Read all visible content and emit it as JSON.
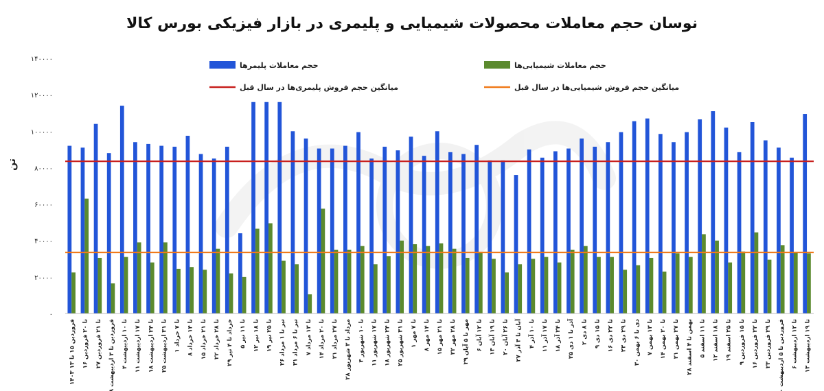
{
  "chart_data": {
    "type": "bar",
    "title": "نوسان حجم معاملات محصولات شیمیایی و پلیمری در بازار فیزیکی بورس کالا",
    "ylabel": "تن",
    "ylim": [
      0,
      140000
    ],
    "yticks": [
      0,
      20000,
      40000,
      60000,
      80000,
      100000,
      120000,
      140000
    ],
    "ytick_labels": [
      "۰",
      "۲۰۰۰۰",
      "۴۰۰۰۰",
      "۶۰۰۰۰",
      "۸۰۰۰۰",
      "۱۰۰۰۰۰",
      "۱۲۰۰۰۰",
      "۱۴۰۰۰۰"
    ],
    "categories": [
      "۱۴۰۳ فروردین ۱۵ تا ۱۳",
      "۱۶ تا ۲۰ فروردین",
      "۲۷ تا ۲۱ فروردین",
      "۲۸ فروردین تا ۳ اردیبهشت",
      "۴ تا ۱۰ اردیبهشت",
      "۱۱ تا ۱۷ اردیبهشت",
      "۱۸ تا ۲۴ اردیبهشت",
      "۲۵ تا ۳۱ اردیبهشت",
      "۱ تا ۷ خرداد",
      "۸ تا ۱۴ خرداد",
      "۱۵ تا ۲۱ خرداد",
      "۲۲ تا ۲۸ خرداد",
      "۲۹ خرداد تا ۴ تیر",
      "۵ تا ۱۱ تیر",
      "۱۲ تا ۱۸ تیر",
      "۱۹ تا ۲۵ تیر",
      "۲۶ تیر تا ۱ مرداد",
      "۳۱ تیر تا ۶ مرداد",
      "۷ تا ۱۳ مرداد",
      "۱۴ تا ۲۰ مرداد",
      "۲۱ تا ۲۷ مرداد",
      "۲۸ مرداد تا ۳ شهریور",
      "۴ تا ۱۰ شهریور",
      "۱۱ تا ۱۷ شهریور",
      "۱۸ تا ۲۴ شهریور",
      "۲۵ تا ۳۱ شهریور",
      "۱ تا ۷ مهر",
      "۸ تا ۱۴ مهر",
      "۱۵ تا ۲۱ مهر",
      "۲۲ تا ۲۸ مهر",
      "۲۹ مهر تا ۵ آبان",
      "۶ تا ۱۲ آبان",
      "۱۳ تا ۱۹ آبان",
      "۲۰ تا ۲۶ آبان",
      "۲۷ آبان تا ۳ آذر",
      "۴ تا ۱۰ آذر",
      "۱۱ تا ۱۷ آذر",
      "۱۸ تا ۲۴ آذر",
      "۲۵ آذر تا ۱ دی",
      "۲ تا ۸ دی",
      "۹ تا ۱۵ دی",
      "۱۶ تا ۲۲ دی",
      "۲۳ تا ۲۹ دی",
      "۳۰ دی تا ۶ بهمن",
      "۷ تا ۱۳ بهمن",
      "۱۴ تا ۲۰ بهمن",
      "۲۱ تا ۲۷ بهمن",
      "۲۸ بهمن تا ۴ اسفند",
      "۵ تا ۱۱ اسفند",
      "۱۲ تا ۱۸ اسفند",
      "۱۹ تا ۲۵ اسفند",
      "۹ تا ۱۵ فروردین",
      "۱۶ تا ۲۲ فروردین",
      "۲۳ تا ۲۹ فروردین",
      "۳۰ فروردین تا ۵ اردیبهشت",
      "۶ تا ۱۲ اردیبهشت",
      "۱۳ تا ۱۹ اردیبهشت"
    ],
    "series": [
      {
        "name": "حجم معاملات پلیمرها",
        "color": "#2255d8",
        "values": [
          92000,
          91000,
          104000,
          88000,
          114000,
          94000,
          93000,
          92000,
          91500,
          97500,
          87500,
          85000,
          91500,
          44000,
          116000,
          116000,
          116000,
          100000,
          96000,
          90500,
          90500,
          92000,
          99500,
          85000,
          91500,
          89500,
          97000,
          86500,
          100000,
          88500,
          87500,
          92500,
          84000,
          84000,
          76000,
          90000,
          85500,
          89000,
          90500,
          96000,
          91500,
          94000,
          99500,
          105500,
          107000,
          98500,
          94000,
          99500,
          106500,
          111000,
          102000,
          88500,
          105000,
          95000,
          91000,
          85500,
          109500
        ]
      },
      {
        "name": "حجم معاملات شیمیایی‌ها",
        "color": "#5b8a2e",
        "values": [
          22500,
          63000,
          30500,
          16500,
          31000,
          39000,
          28000,
          39000,
          24500,
          25500,
          24000,
          35500,
          22000,
          20000,
          46500,
          49500,
          29000,
          27000,
          10500,
          57500,
          35000,
          35000,
          37000,
          27000,
          31500,
          40000,
          38000,
          37000,
          38500,
          35500,
          30500,
          33500,
          30000,
          22500,
          27000,
          30000,
          31000,
          28000,
          35000,
          37000,
          31000,
          31000,
          24000,
          26500,
          30500,
          23000,
          33000,
          31000,
          43500,
          40000,
          28000,
          34000,
          44500,
          29500,
          37500,
          33500,
          33000
        ]
      }
    ],
    "reference_lines": [
      {
        "name": "میانگین حجم فروش پلیمری‌ها در سال قبل",
        "value": 83500,
        "color": "#c8201e"
      },
      {
        "name": "میانگین حجم فروش شیمیایی‌ها در سال قبل",
        "value": 33500,
        "color": "#f07a1a"
      }
    ],
    "legend_position": "top"
  }
}
